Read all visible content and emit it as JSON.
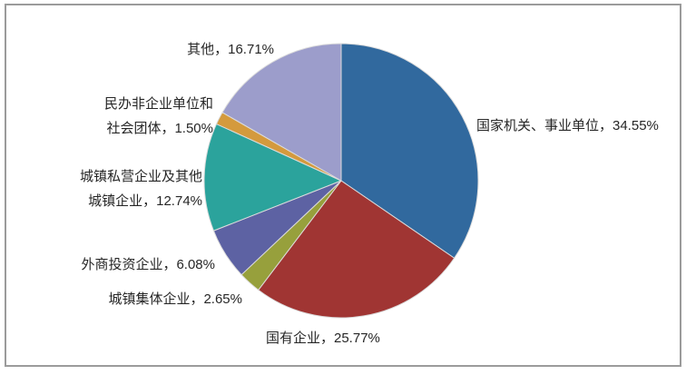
{
  "colors": {
    "background": "#ffffff",
    "frame_border": "#9b9b9b",
    "label_text": "#262626",
    "slice_separator": "#dcdcdc"
  },
  "chart_data": {
    "type": "pie",
    "title": "",
    "legend": "none",
    "start_angle_deg": 0,
    "direction": "clockwise",
    "total": 100.0,
    "segments": [
      {
        "label": "国家机关、事业单位",
        "value": 34.55,
        "color": "#31699E",
        "display": [
          "国家机关、事业单位，34.55%"
        ]
      },
      {
        "label": "国有企业",
        "value": 25.77,
        "color": "#A03533",
        "display": [
          "国有企业，25.77%"
        ]
      },
      {
        "label": "城镇集体企业",
        "value": 2.65,
        "color": "#97A03C",
        "display": [
          "城镇集体企业，2.65%"
        ]
      },
      {
        "label": "外商投资企业",
        "value": 6.08,
        "color": "#5D62A3",
        "display": [
          "外商投资企业，6.08%"
        ]
      },
      {
        "label": "城镇私营企业及其他城镇企业",
        "value": 12.74,
        "color": "#2BA39C",
        "display": [
          "城镇私营企业及其他",
          "城镇企业，12.74%"
        ]
      },
      {
        "label": "民办非企业单位和社会团体",
        "value": 1.5,
        "color": "#D49A3D",
        "display": [
          "民办非企业单位和",
          "社会团体，1.50%"
        ]
      },
      {
        "label": "其他",
        "value": 16.71,
        "color": "#9C9DCB",
        "display": [
          "其他，16.71%"
        ]
      }
    ]
  }
}
